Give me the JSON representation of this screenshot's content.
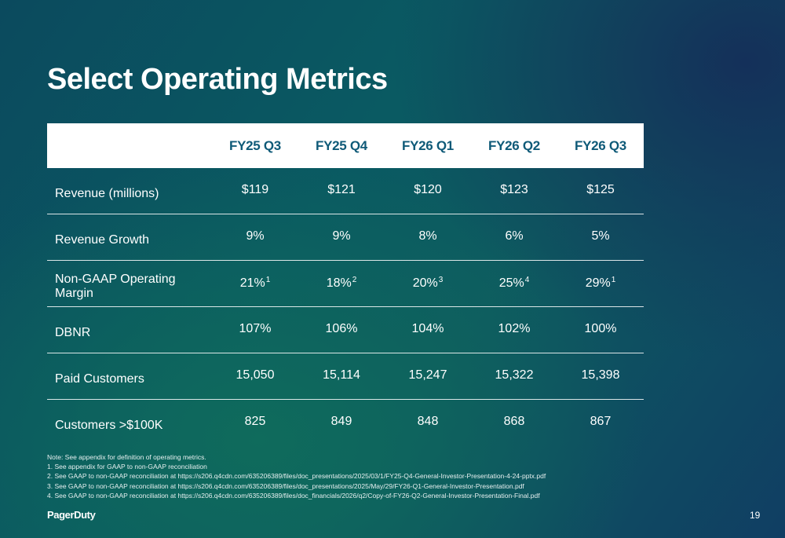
{
  "slide": {
    "title": "Select Operating Metrics",
    "page_number": "19",
    "logo_text": "PagerDuty"
  },
  "table": {
    "columns": [
      "FY25 Q3",
      "FY25 Q4",
      "FY26 Q1",
      "FY26 Q2",
      "FY26 Q3"
    ],
    "rows": [
      {
        "label": "Revenue (millions)",
        "values": [
          "$119",
          "$121",
          "$120",
          "$123",
          "$125"
        ],
        "footnotes": [
          "",
          "",
          "",
          "",
          ""
        ]
      },
      {
        "label": "Revenue Growth",
        "values": [
          "9%",
          "9%",
          "8%",
          "6%",
          "5%"
        ],
        "footnotes": [
          "",
          "",
          "",
          "",
          ""
        ]
      },
      {
        "label": "Non-GAAP Operating Margin",
        "values": [
          "21%",
          "18%",
          "20%",
          "25%",
          "29%"
        ],
        "footnotes": [
          "1",
          "2",
          "3",
          "4",
          "1"
        ]
      },
      {
        "label": "DBNR",
        "values": [
          "107%",
          "106%",
          "104%",
          "102%",
          "100%"
        ],
        "footnotes": [
          "",
          "",
          "",
          "",
          ""
        ]
      },
      {
        "label": "Paid Customers",
        "values": [
          "15,050",
          "15,114",
          "15,247",
          "15,322",
          "15,398"
        ],
        "footnotes": [
          "",
          "",
          "",
          "",
          ""
        ]
      },
      {
        "label": "Customers >$100K",
        "values": [
          "825",
          "849",
          "848",
          "868",
          "867"
        ],
        "footnotes": [
          "",
          "",
          "",
          "",
          ""
        ]
      }
    ]
  },
  "notes": [
    "Note: See appendix for definition of operating metrics.",
    "1. See appendix for GAAP to non-GAAP reconciliation",
    "2. See GAAP to non-GAAP reconciliation at https://s206.q4cdn.com/635206389/files/doc_presentations/2025/03/1/FY25-Q4-General-Investor-Presentation-4-24-pptx.pdf",
    "3. See GAAP to non-GAAP reconciliation at https://s206.q4cdn.com/635206389/files/doc_presentations/2025/May/29/FY26-Q1-General-Investor-Presentation.pdf",
    "4. See GAAP to non-GAAP reconciliation at https://s206.q4cdn.com/635206389/files/doc_financials/2026/q2/Copy-of-FY26-Q2-General-Investor-Presentation-Final.pdf"
  ],
  "colors": {
    "header_text": "#0f5a78",
    "background_teal": "#0a5a62",
    "background_navy": "#103e63"
  }
}
